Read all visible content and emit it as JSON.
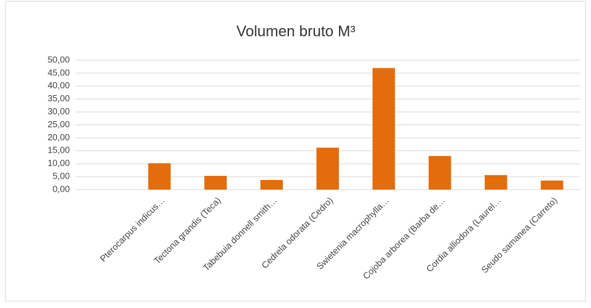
{
  "chart_data": {
    "type": "bar",
    "title": "Volumen bruto M³",
    "categories": [
      null,
      "Pterocarpus indicus…",
      "Tectona grandis (Teca)",
      "Tabebuia donnell smith…",
      "Cedrela odorata (Cedro)",
      "Swietenia macrophylla…",
      "Cojoba arborea (Barba de…",
      "Cordia alliodora (Laurel…",
      "Seudo samanea (Carreto)"
    ],
    "values": [
      null,
      10.2,
      5.3,
      3.7,
      16.2,
      47.0,
      13.0,
      5.6,
      3.5
    ],
    "color": "#e46c0a",
    "ylim": [
      0,
      50
    ],
    "yticks": [
      {
        "value": 0,
        "label": "0,00"
      },
      {
        "value": 5,
        "label": "5,00"
      },
      {
        "value": 10,
        "label": "10,00"
      },
      {
        "value": 15,
        "label": "15,00"
      },
      {
        "value": 20,
        "label": "20,00"
      },
      {
        "value": 25,
        "label": "25,00"
      },
      {
        "value": 30,
        "label": "30,00"
      },
      {
        "value": 35,
        "label": "35,00"
      },
      {
        "value": 40,
        "label": "40,00"
      },
      {
        "value": 45,
        "label": "45,00"
      },
      {
        "value": 50,
        "label": "50,00"
      }
    ],
    "grid": true
  }
}
